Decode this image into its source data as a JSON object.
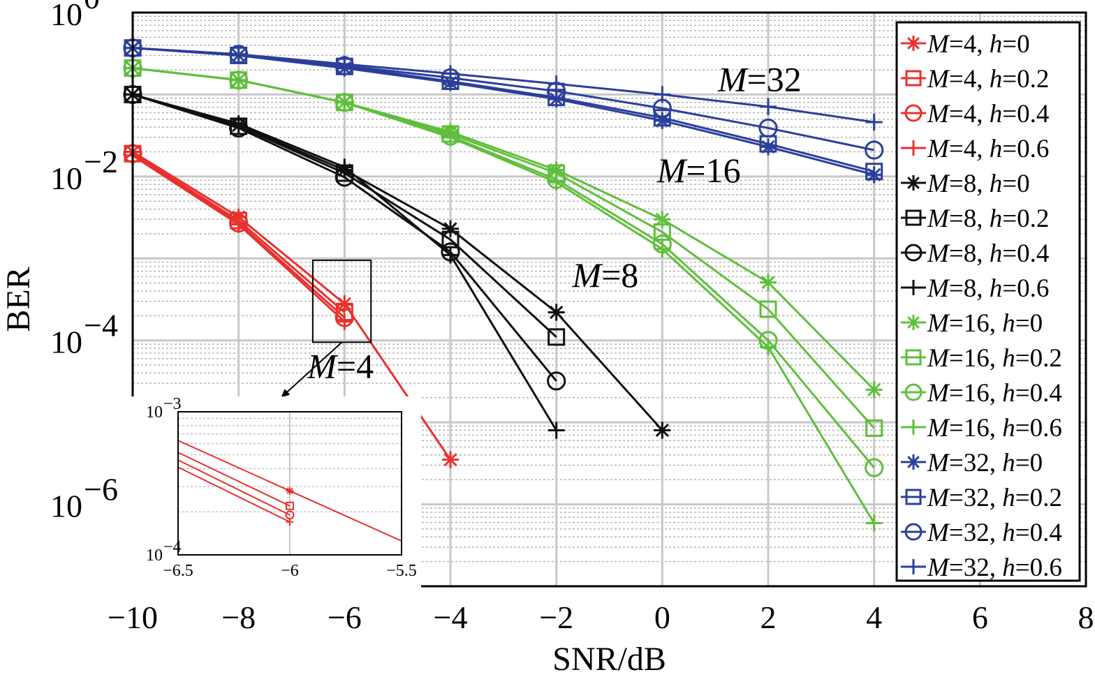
{
  "chart_data": {
    "type": "line",
    "xlabel": "SNR/dB",
    "ylabel": "BER",
    "yscale": "log",
    "xlim": [
      -10,
      8
    ],
    "ylim": [
      1e-07,
      1
    ],
    "x_ticks": [
      -10,
      -8,
      -6,
      -4,
      -2,
      0,
      2,
      4,
      6,
      8
    ],
    "x_tick_labels": [
      "−10",
      "−8",
      "−6",
      "−4",
      "−2",
      "0",
      "2",
      "4",
      "6",
      "8"
    ],
    "y_ticks": [
      {
        "value": 1,
        "base": "10",
        "exp": "0"
      },
      {
        "value": 0.01,
        "base": "10",
        "exp": "−2"
      },
      {
        "value": 0.0001,
        "base": "10",
        "exp": "−4"
      },
      {
        "value": 1e-06,
        "base": "10",
        "exp": "−6"
      }
    ],
    "grid": true,
    "legend_position": "right",
    "colors": {
      "M4": "#e8312d",
      "M8": "#111111",
      "M16": "#5fbf3c",
      "M32": "#2b3f9a"
    },
    "series": [
      {
        "name": "M=4, h=0",
        "color": "#e8312d",
        "marker": "star",
        "x": [
          -10,
          -8,
          -6,
          -4
        ],
        "y": [
          0.02,
          0.0032,
          0.00028,
          3.5e-06
        ]
      },
      {
        "name": "M=4, h=0.2",
        "color": "#e8312d",
        "marker": "square",
        "x": [
          -10,
          -8,
          -6
        ],
        "y": [
          0.019,
          0.0029,
          0.00022
        ]
      },
      {
        "name": "M=4, h=0.4",
        "color": "#e8312d",
        "marker": "circle",
        "x": [
          -10,
          -8,
          -6
        ],
        "y": [
          0.019,
          0.0027,
          0.00019
        ]
      },
      {
        "name": "M=4, h=0.6",
        "color": "#e8312d",
        "marker": "plus",
        "x": [
          -10,
          -8,
          -6
        ],
        "y": [
          0.018,
          0.0026,
          0.00017
        ]
      },
      {
        "name": "M=8, h=0",
        "color": "#111111",
        "marker": "star",
        "x": [
          -10,
          -8,
          -6,
          -4,
          -2,
          0
        ],
        "y": [
          0.1,
          0.042,
          0.012,
          0.0023,
          0.00022,
          8e-06
        ]
      },
      {
        "name": "M=8, h=0.2",
        "color": "#111111",
        "marker": "square",
        "x": [
          -10,
          -8,
          -6,
          -4,
          -2
        ],
        "y": [
          0.1,
          0.041,
          0.011,
          0.0017,
          0.00011
        ]
      },
      {
        "name": "M=8, h=0.4",
        "color": "#111111",
        "marker": "circle",
        "x": [
          -10,
          -8,
          -6,
          -4,
          -2
        ],
        "y": [
          0.1,
          0.039,
          0.0098,
          0.0012,
          3.2e-05
        ]
      },
      {
        "name": "M=8, h=0.6",
        "color": "#111111",
        "marker": "plus",
        "x": [
          -10,
          -8,
          -6,
          -4,
          -2
        ],
        "y": [
          0.1,
          0.044,
          0.013,
          0.0011,
          8e-06
        ]
      },
      {
        "name": "M=16, h=0",
        "color": "#5fbf3c",
        "marker": "star",
        "x": [
          -10,
          -8,
          -6,
          -4,
          -2,
          0,
          2,
          4
        ],
        "y": [
          0.21,
          0.15,
          0.08,
          0.035,
          0.012,
          0.003,
          0.00051,
          2.5e-05
        ]
      },
      {
        "name": "M=16, h=0.2",
        "color": "#5fbf3c",
        "marker": "square",
        "x": [
          -10,
          -8,
          -6,
          -4,
          -2,
          0,
          2,
          4
        ],
        "y": [
          0.21,
          0.15,
          0.08,
          0.033,
          0.011,
          0.0021,
          0.00024,
          8.5e-06
        ]
      },
      {
        "name": "M=16, h=0.4",
        "color": "#5fbf3c",
        "marker": "circle",
        "x": [
          -10,
          -8,
          -6,
          -4,
          -2,
          0,
          2,
          4
        ],
        "y": [
          0.21,
          0.15,
          0.08,
          0.031,
          0.0092,
          0.0015,
          0.0001,
          2.8e-06
        ]
      },
      {
        "name": "M=16, h=0.6",
        "color": "#5fbf3c",
        "marker": "plus",
        "x": [
          -10,
          -8,
          -6,
          -4,
          -2,
          0,
          2,
          4
        ],
        "y": [
          0.21,
          0.15,
          0.08,
          0.03,
          0.0085,
          0.0013,
          8.3e-05,
          5.9e-07
        ]
      },
      {
        "name": "M=32, h=0",
        "color": "#2b3f9a",
        "marker": "star",
        "x": [
          -10,
          -8,
          -6,
          -4,
          -2,
          0,
          2,
          4
        ],
        "y": [
          0.37,
          0.3,
          0.21,
          0.14,
          0.088,
          0.048,
          0.023,
          0.0105
        ]
      },
      {
        "name": "M=32, h=0.2",
        "color": "#2b3f9a",
        "marker": "square",
        "x": [
          -10,
          -8,
          -6,
          -4,
          -2,
          0,
          2,
          4
        ],
        "y": [
          0.37,
          0.3,
          0.22,
          0.145,
          0.092,
          0.052,
          0.025,
          0.0115
        ]
      },
      {
        "name": "M=32, h=0.4",
        "color": "#2b3f9a",
        "marker": "circle",
        "x": [
          -10,
          -8,
          -6,
          -4,
          -2,
          0,
          2,
          4
        ],
        "y": [
          0.37,
          0.31,
          0.225,
          0.16,
          0.11,
          0.068,
          0.039,
          0.021
        ]
      },
      {
        "name": "M=32, h=0.6",
        "color": "#2b3f9a",
        "marker": "plus",
        "x": [
          -10,
          -8,
          -6,
          -4,
          -2,
          0,
          2,
          4
        ],
        "y": [
          0.37,
          0.31,
          0.235,
          0.18,
          0.135,
          0.1,
          0.071,
          0.046
        ]
      }
    ],
    "annotations": [
      {
        "text": "M=4",
        "x": -6.7,
        "y": 3.5e-05
      },
      {
        "text": "M=8",
        "x": -1.7,
        "y": 0.00045
      },
      {
        "text": "M=16",
        "x": -0.1,
        "y": 0.0085
      },
      {
        "text": "M=32",
        "x": 1.05,
        "y": 0.11
      }
    ],
    "inset": {
      "xlim": [
        -6.5,
        -5.5
      ],
      "ylim": [
        0.0001,
        0.001
      ],
      "x_ticks": [
        -6.5,
        -6,
        -5.5
      ],
      "x_tick_labels": [
        "−6.5",
        "−6",
        "−5.5"
      ],
      "y_ticks": [
        {
          "value": 0.001,
          "base": "10",
          "exp": "−3"
        },
        {
          "value": 0.0001,
          "base": "10",
          "exp": "−4"
        }
      ],
      "zoom_region": {
        "x": [
          -6.6,
          -5.5
        ],
        "y": [
          9.5e-05,
          0.00095
        ]
      },
      "series": [
        {
          "marker": "star",
          "x": [
            -6.5,
            -6,
            -5.5
          ],
          "y": [
            0.00063,
            0.00028,
            0.000125
          ]
        },
        {
          "marker": "square",
          "x": [
            -6.5,
            -6
          ],
          "y": [
            0.00052,
            0.00022
          ]
        },
        {
          "marker": "circle",
          "x": [
            -6.5,
            -6
          ],
          "y": [
            0.00046,
            0.00019
          ]
        },
        {
          "marker": "plus",
          "x": [
            -6.5,
            -6
          ],
          "y": [
            0.00041,
            0.00017
          ]
        }
      ]
    }
  }
}
